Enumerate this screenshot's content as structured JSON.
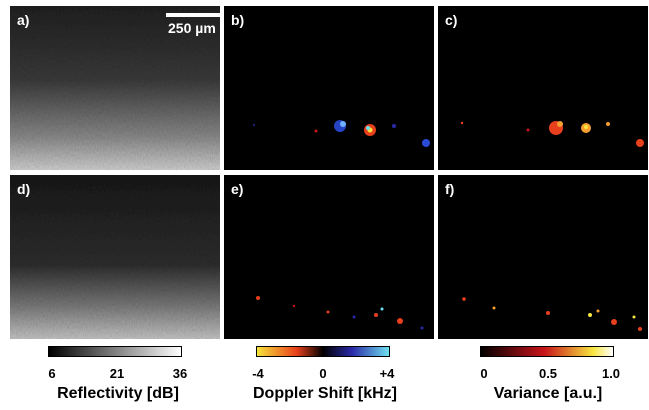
{
  "panels": [
    {
      "label": "a)",
      "kind": "oct"
    },
    {
      "label": "b)",
      "kind": "doppler"
    },
    {
      "label": "c)",
      "kind": "variance"
    },
    {
      "label": "d)",
      "kind": "oct"
    },
    {
      "label": "e)",
      "kind": "doppler"
    },
    {
      "label": "f)",
      "kind": "variance"
    }
  ],
  "scale_bar": {
    "label": "250 µm"
  },
  "colorbars": [
    {
      "title": "Reflectivity [dB]",
      "ticks": [
        "6",
        "21",
        "36"
      ],
      "colors": [
        "#000000",
        "#ffffff"
      ]
    },
    {
      "title": "Doppler Shift [kHz]",
      "ticks": [
        "-4",
        "0",
        "+4"
      ],
      "colors": [
        "#f5e23a",
        "#e8401c",
        "#000000",
        "#2a2aa8",
        "#6fe0f0"
      ]
    },
    {
      "title": "Variance [a.u.]",
      "ticks": [
        "0",
        "0.5",
        "1.0"
      ],
      "colors": [
        "#000000",
        "#c8141a",
        "#f7e640",
        "#ffffff"
      ]
    }
  ]
}
